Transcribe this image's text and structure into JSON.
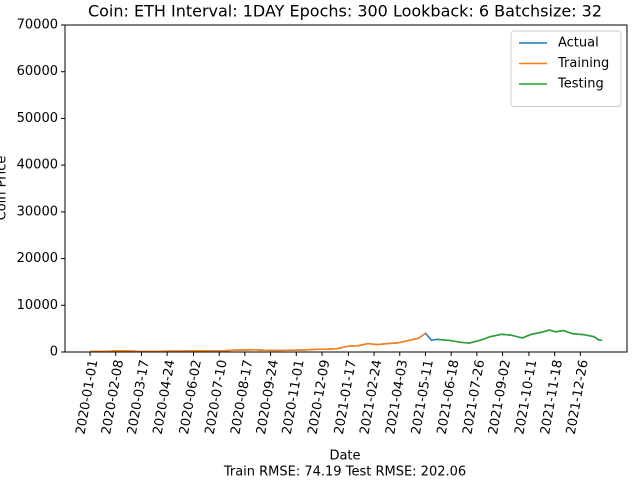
{
  "chart_data": {
    "type": "line",
    "title": "Coin: ETH Interval: 1DAY Epochs: 300 Lookback: 6 Batchsize: 32",
    "xlabel": "Date",
    "ylabel": "Coin Price",
    "footer": "Train RMSE: 74.19 Test RMSE: 202.06",
    "x": [
      "2020-01-01",
      "2020-02-01",
      "2020-02-15",
      "2020-03-01",
      "2020-03-15",
      "2020-04-01",
      "2020-04-15",
      "2020-05-01",
      "2020-05-15",
      "2020-06-01",
      "2020-06-15",
      "2020-07-01",
      "2020-07-15",
      "2020-08-01",
      "2020-08-15",
      "2020-09-01",
      "2020-09-15",
      "2020-10-01",
      "2020-10-15",
      "2020-11-01",
      "2020-11-15",
      "2020-12-01",
      "2020-12-15",
      "2021-01-01",
      "2021-01-15",
      "2021-02-01",
      "2021-02-15",
      "2021-03-01",
      "2021-03-15",
      "2021-04-01",
      "2021-04-15",
      "2021-05-01",
      "2021-05-11",
      "2021-05-20",
      "2021-05-28",
      "2021-06-15",
      "2021-07-01",
      "2021-07-15",
      "2021-08-01",
      "2021-08-15",
      "2021-09-01",
      "2021-09-15",
      "2021-10-01",
      "2021-10-15",
      "2021-11-01",
      "2021-11-10",
      "2021-11-20",
      "2021-12-01",
      "2021-12-15",
      "2022-01-01",
      "2022-01-15",
      "2022-01-22",
      "2022-01-27"
    ],
    "series": [
      {
        "name": "Actual",
        "color": "#1f77b4",
        "values": [
          130,
          180,
          270,
          220,
          125,
          135,
          160,
          210,
          200,
          240,
          230,
          225,
          240,
          390,
          430,
          480,
          365,
          360,
          380,
          400,
          450,
          590,
          590,
          730,
          1200,
          1370,
          1780,
          1570,
          1800,
          1970,
          2430,
          2950,
          4000,
          2500,
          2700,
          2500,
          2100,
          1900,
          2550,
          3300,
          3800,
          3600,
          3000,
          3800,
          4300,
          4700,
          4300,
          4600,
          3900,
          3700,
          3300,
          2600,
          2500
        ]
      },
      {
        "name": "Training",
        "color": "#ff7f0e",
        "values": [
          130,
          180,
          270,
          220,
          125,
          135,
          160,
          210,
          200,
          240,
          230,
          225,
          240,
          390,
          430,
          480,
          365,
          360,
          380,
          400,
          450,
          590,
          590,
          730,
          1200,
          1370,
          1780,
          1570,
          1800,
          1970,
          2430,
          2950,
          4000,
          null,
          null,
          null,
          null,
          null,
          null,
          null,
          null,
          null,
          null,
          null,
          null,
          null,
          null,
          null,
          null,
          null,
          null,
          null,
          null
        ]
      },
      {
        "name": "Testing",
        "color": "#2ca02c",
        "values": [
          null,
          null,
          null,
          null,
          null,
          null,
          null,
          null,
          null,
          null,
          null,
          null,
          null,
          null,
          null,
          null,
          null,
          null,
          null,
          null,
          null,
          null,
          null,
          null,
          null,
          null,
          null,
          null,
          null,
          null,
          null,
          null,
          null,
          null,
          2700,
          2500,
          2100,
          1900,
          2550,
          3300,
          3800,
          3600,
          3000,
          3800,
          4300,
          4700,
          4300,
          4600,
          3900,
          3700,
          3300,
          2600,
          2500
        ]
      }
    ],
    "xlim": [
      "2019-11-25",
      "2022-03-05"
    ],
    "xticks": [
      "2020-01-01",
      "2020-02-08",
      "2020-03-17",
      "2020-04-24",
      "2020-06-02",
      "2020-07-10",
      "2020-08-17",
      "2020-09-24",
      "2020-11-01",
      "2020-12-09",
      "2021-01-17",
      "2021-02-24",
      "2021-04-03",
      "2021-05-11",
      "2021-06-18",
      "2021-07-26",
      "2021-09-02",
      "2021-10-11",
      "2021-11-18",
      "2021-12-26"
    ],
    "ylim": [
      0,
      70000
    ],
    "yticks": [
      0,
      10000,
      20000,
      30000,
      40000,
      50000,
      60000,
      70000
    ],
    "legend": "upper right"
  }
}
